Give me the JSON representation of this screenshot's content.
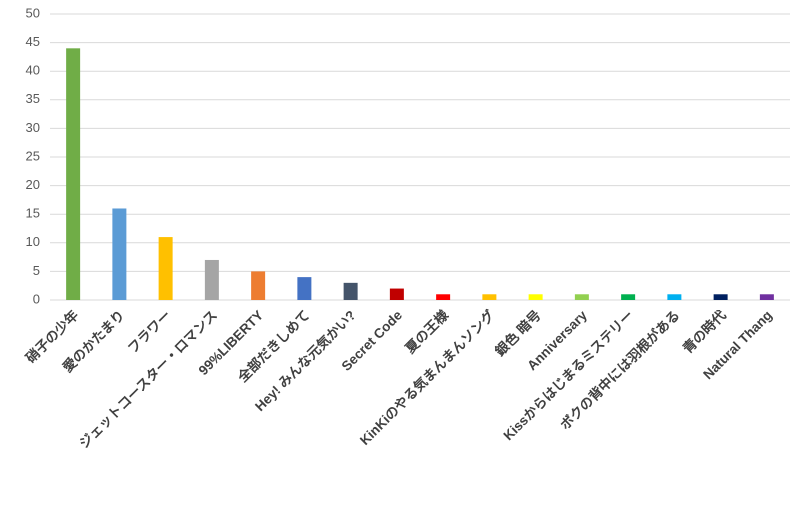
{
  "chart_data": {
    "type": "bar",
    "categories": [
      "硝子の少年",
      "愛のかたまり",
      "フラワー",
      "ジェットコースター・ロマンス",
      "99%LIBERTY",
      "全部だきしめて",
      "Hey! みんな元気かい?",
      "Secret Code",
      "夏の王様",
      "KinKiのやる気まんまんソング",
      "銀色 暗号",
      "Anniversary",
      "Kissからはじまるミステリー",
      "ボクの背中には羽根がある",
      "青の時代",
      "Natural Thang"
    ],
    "values": [
      44,
      16,
      11,
      7,
      5,
      4,
      3,
      2,
      1,
      1,
      1,
      1,
      1,
      1,
      1,
      1
    ],
    "colors": [
      "#70ad47",
      "#5b9bd5",
      "#ffc000",
      "#a5a5a5",
      "#ed7d31",
      "#4472c4",
      "#44546a",
      "#c00000",
      "#ff0000",
      "#ffc000",
      "#ffff00",
      "#92d050",
      "#00b050",
      "#00b0f0",
      "#002060",
      "#7030a0"
    ],
    "ylim": [
      0,
      50
    ],
    "yticks": [
      0,
      5,
      10,
      15,
      20,
      25,
      30,
      35,
      40,
      45,
      50
    ],
    "grid": true
  }
}
